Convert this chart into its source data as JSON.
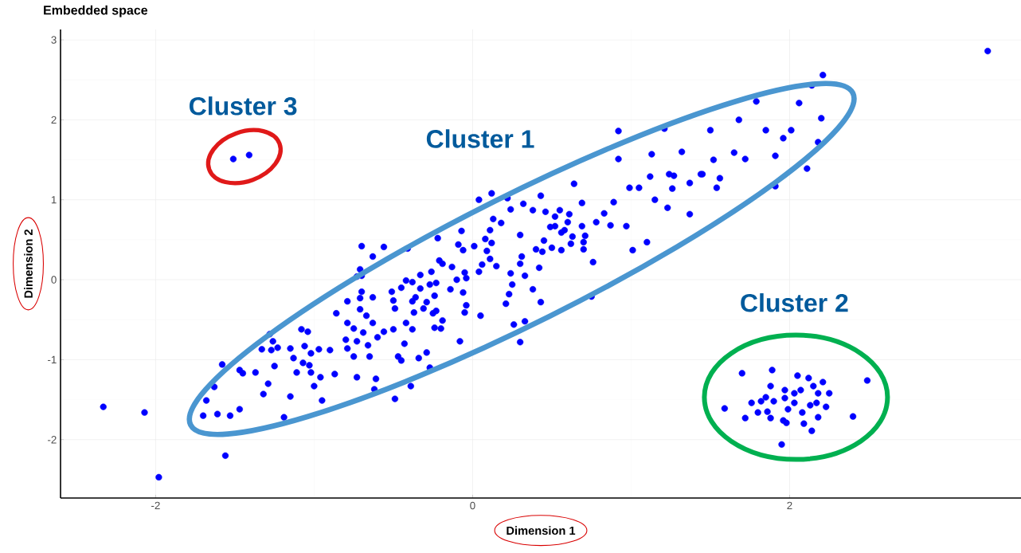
{
  "chart_data": {
    "type": "scatter",
    "title": "Embedded space",
    "xlabel": "Dimension 1",
    "ylabel": "Dimension 2",
    "color": "#0000ff",
    "marker": "circle",
    "grid": true,
    "xlim": [
      -2.6,
      3.46
    ],
    "ylim": [
      -2.73,
      3.13
    ],
    "xticks": [
      -2,
      0,
      2
    ],
    "yticks": [
      -2,
      -1,
      0,
      1,
      2,
      3
    ],
    "annotations": [
      "Cluster 1",
      "Cluster 2",
      "Cluster 3"
    ],
    "x": [
      -2.33,
      -2.07,
      -1.98,
      -1.56,
      3.25,
      -1.51,
      -1.41,
      2.21,
      2.14,
      1.79,
      2.06,
      2.2,
      1.68,
      1.5,
      1.85,
      2.01,
      1.96,
      2.18,
      1.65,
      1.72,
      1.52,
      1.91,
      1.45,
      1.56,
      1.54,
      1.91,
      2.11,
      0.92,
      1.21,
      0.92,
      1.13,
      1.32,
      1.12,
      1.24,
      1.27,
      1.44,
      1.37,
      1.26,
      0.99,
      1.05,
      1.15,
      1.23,
      1.37,
      0.64,
      0.89,
      0.69,
      0.43,
      0.32,
      0.22,
      0.12,
      0.04,
      0.24,
      0.38,
      0.46,
      0.55,
      0.61,
      0.52,
      0.13,
      0.18,
      0.83,
      0.78,
      0.97,
      0.87,
      0.69,
      0.6,
      0.52,
      0.49,
      0.56,
      0.58,
      0.63,
      0.71,
      0.7,
      0.7,
      0.62,
      0.56,
      0.5,
      0.45,
      0.44,
      0.4,
      0.3,
      0.31,
      0.3,
      1.1,
      1.01,
      0.76,
      0.11,
      0.08,
      0.12,
      0.09,
      0.11,
      0.01,
      -0.07,
      -0.09,
      -0.06,
      -0.22,
      -0.41,
      -0.56,
      -0.21,
      -0.19,
      0.06,
      0.75,
      0.43,
      0.38,
      0.23,
      0.21,
      0.25,
      0.24,
      0.33,
      0.42,
      0.15,
      0.05,
      0.26,
      0.33,
      0.3,
      -0.08,
      -0.04,
      -0.05,
      -0.06,
      -0.14,
      -0.1,
      -0.04,
      -0.05,
      0.04,
      -0.13,
      -0.23,
      -0.27,
      -0.26,
      -0.33,
      -0.38,
      -0.42,
      -0.45,
      -0.51,
      -0.33,
      -0.24,
      -0.36,
      -0.38,
      -0.29,
      -0.31,
      -0.37,
      -0.23,
      -0.25,
      -0.5,
      -0.49,
      -0.19,
      -0.2,
      -0.24,
      -0.42,
      -0.38,
      -0.5,
      -0.56,
      -0.43,
      -0.29,
      -0.34,
      -0.47,
      -0.45,
      -0.27,
      -0.39,
      -0.49,
      -0.73,
      -0.7,
      -0.7,
      -0.71,
      -0.63,
      -0.79,
      -0.86,
      -0.71,
      -0.67,
      -0.63,
      -0.79,
      -0.75,
      -0.69,
      -0.6,
      -0.8,
      -0.73,
      -0.66,
      -0.79,
      -0.75,
      -0.65,
      -0.73,
      -0.61,
      -0.62,
      -0.87,
      -0.9,
      -0.97,
      -1.02,
      -1.08,
      -1.04,
      -1.06,
      -1.15,
      -1.13,
      -1.07,
      -1.03,
      -1.11,
      -1.02,
      -0.96,
      -1.0,
      -0.95,
      -1.15,
      -1.19,
      -1.28,
      -1.26,
      -1.23,
      -1.27,
      -1.33,
      -1.25,
      -1.29,
      -1.32,
      -1.37,
      -1.47,
      -1.45,
      -1.58,
      -1.63,
      -1.68,
      -1.7,
      -1.61,
      -1.53,
      -1.47,
      -0.71,
      -0.63,
      -0.7,
      1.7,
      1.89,
      1.59,
      1.72,
      2.05,
      2.12,
      2.21,
      2.49,
      2.4,
      1.95,
      2.14,
      2.09,
      2.18,
      2.23,
      2.25,
      2.15,
      2.17,
      2.13,
      2.08,
      1.98,
      1.96,
      1.99,
      2.03,
      2.03,
      2.07,
      1.97,
      1.97,
      1.88,
      1.9,
      1.85,
      1.82,
      1.76,
      1.8,
      1.86,
      1.88,
      2.18
    ],
    "values": [
      -1.59,
      -1.66,
      -2.47,
      -2.2,
      2.86,
      1.51,
      1.56,
      2.56,
      2.43,
      2.23,
      2.21,
      2.02,
      2.0,
      1.87,
      1.87,
      1.87,
      1.77,
      1.72,
      1.59,
      1.51,
      1.5,
      1.55,
      1.32,
      1.27,
      1.15,
      1.17,
      1.39,
      1.86,
      1.89,
      1.51,
      1.57,
      1.6,
      1.29,
      1.32,
      1.3,
      1.32,
      1.21,
      1.14,
      1.15,
      1.15,
      1.0,
      0.9,
      0.82,
      1.2,
      0.97,
      0.96,
      1.05,
      0.95,
      1.02,
      1.08,
      1.0,
      0.88,
      0.87,
      0.85,
      0.87,
      0.82,
      0.79,
      0.76,
      0.71,
      0.83,
      0.72,
      0.67,
      0.68,
      0.67,
      0.72,
      0.67,
      0.66,
      0.59,
      0.62,
      0.54,
      0.55,
      0.47,
      0.38,
      0.45,
      0.37,
      0.4,
      0.49,
      0.35,
      0.38,
      0.56,
      0.29,
      0.2,
      0.47,
      0.37,
      0.22,
      0.62,
      0.51,
      0.46,
      0.36,
      0.26,
      0.42,
      0.61,
      0.44,
      0.37,
      0.52,
      0.39,
      0.41,
      0.24,
      0.2,
      0.19,
      -0.21,
      -0.28,
      -0.12,
      -0.18,
      -0.3,
      -0.06,
      0.08,
      0.05,
      0.15,
      0.17,
      -0.45,
      -0.56,
      -0.52,
      -0.78,
      -0.77,
      -0.32,
      -0.41,
      -0.16,
      -0.12,
      0.0,
      0.02,
      0.09,
      0.1,
      0.16,
      -0.04,
      -0.06,
      0.1,
      0.06,
      -0.03,
      -0.01,
      -0.1,
      -0.15,
      -0.11,
      -0.2,
      -0.22,
      -0.27,
      -0.28,
      -0.36,
      -0.41,
      -0.39,
      -0.42,
      -0.26,
      -0.36,
      -0.51,
      -0.61,
      -0.6,
      -0.54,
      -0.62,
      -0.62,
      -0.65,
      -0.8,
      -0.91,
      -0.98,
      -0.96,
      -1.01,
      -1.1,
      -1.33,
      -1.49,
      0.04,
      0.05,
      -0.15,
      -0.23,
      -0.22,
      -0.27,
      -0.42,
      -0.37,
      -0.45,
      -0.54,
      -0.54,
      -0.61,
      -0.66,
      -0.72,
      -0.75,
      -0.77,
      -0.82,
      -0.86,
      -0.96,
      -0.96,
      -1.22,
      -1.24,
      -1.37,
      -1.18,
      -0.88,
      -0.87,
      -0.92,
      -0.62,
      -0.65,
      -0.83,
      -0.86,
      -0.98,
      -1.04,
      -1.07,
      -1.16,
      -1.16,
      -1.22,
      -1.33,
      -1.51,
      -1.46,
      -1.72,
      -0.68,
      -0.77,
      -0.85,
      -0.88,
      -0.87,
      -1.08,
      -1.3,
      -1.43,
      -1.16,
      -1.13,
      -1.17,
      -1.06,
      -1.34,
      -1.51,
      -1.7,
      -1.68,
      -1.7,
      -1.62,
      0.13,
      0.29,
      0.42,
      -1.17,
      -1.13,
      -1.61,
      -1.73,
      -1.2,
      -1.23,
      -1.28,
      -1.26,
      -1.71,
      -2.06,
      -1.89,
      -1.8,
      -1.72,
      -1.59,
      -1.42,
      -1.33,
      -1.54,
      -1.57,
      -1.66,
      -1.79,
      -1.76,
      -1.62,
      -1.54,
      -1.42,
      -1.38,
      -1.38,
      -1.48,
      -1.33,
      -1.52,
      -1.47,
      -1.52,
      -1.54,
      -1.66,
      -1.65,
      -1.73,
      -1.42
    ]
  }
}
